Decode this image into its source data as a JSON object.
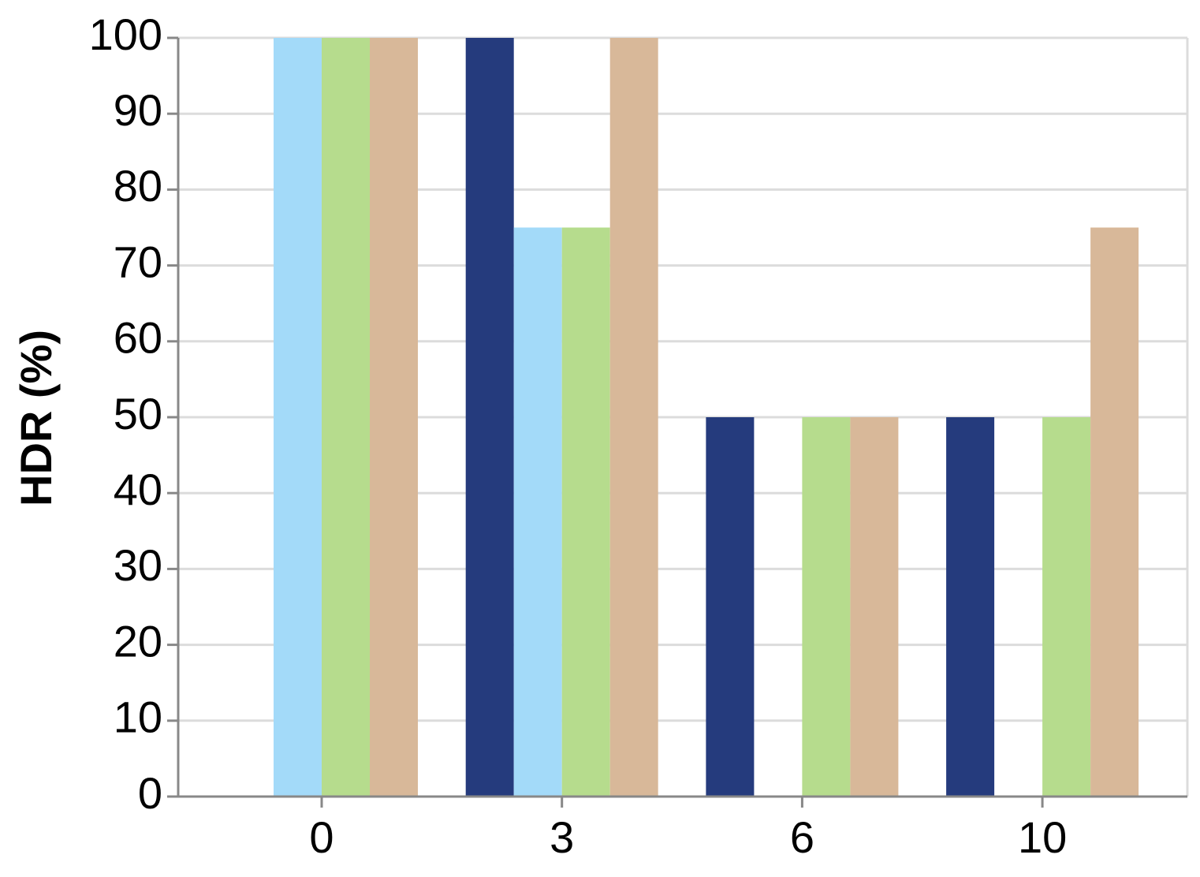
{
  "chart_data": {
    "type": "bar",
    "y_label": "HDR (%)",
    "categories": [
      "0",
      "3",
      "6",
      "10"
    ],
    "series": [
      {
        "color": "#253b7d",
        "values": [
          0,
          100,
          50,
          50
        ]
      },
      {
        "color": "#a3daf9",
        "values": [
          100,
          75,
          0,
          0
        ]
      },
      {
        "color": "#b6dc8d",
        "values": [
          100,
          75,
          50,
          50
        ]
      },
      {
        "color": "#d8b899",
        "values": [
          100,
          100,
          50,
          75
        ]
      }
    ],
    "ylim": [
      0,
      100
    ],
    "yticks": [
      0,
      10,
      20,
      30,
      40,
      50,
      60,
      70,
      80,
      90,
      100
    ],
    "grid": true
  }
}
